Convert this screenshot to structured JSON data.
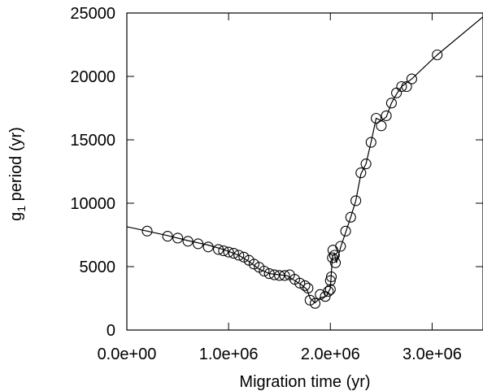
{
  "chart_data": {
    "type": "scatter",
    "title": "",
    "xlabel": "Migration time (yr)",
    "ylabel": {
      "main": "g",
      "sub": "1",
      "rest": " period (yr)"
    },
    "xlim": [
      0,
      3500000
    ],
    "ylim": [
      0,
      25000
    ],
    "x_ticks": [
      {
        "value": 0,
        "label": "0.0e+00"
      },
      {
        "value": 1000000,
        "label": "1.0e+06"
      },
      {
        "value": 2000000,
        "label": "2.0e+06"
      },
      {
        "value": 3000000,
        "label": "3.0e+06"
      }
    ],
    "y_ticks": [
      {
        "value": 0,
        "label": "0"
      },
      {
        "value": 5000,
        "label": "5000"
      },
      {
        "value": 10000,
        "label": "10000"
      },
      {
        "value": 15000,
        "label": "15000"
      },
      {
        "value": 20000,
        "label": "20000"
      },
      {
        "value": 25000,
        "label": "25000"
      }
    ],
    "grid": false,
    "legend": "none",
    "series": [
      {
        "style": "line",
        "color": "#000000",
        "points": [
          [
            0,
            8150
          ],
          [
            200000,
            7800
          ],
          [
            400000,
            7450
          ],
          [
            600000,
            7050
          ],
          [
            800000,
            6700
          ],
          [
            950000,
            6350
          ],
          [
            1100000,
            5900
          ],
          [
            1200000,
            5400
          ],
          [
            1300000,
            4800
          ],
          [
            1400000,
            4450
          ],
          [
            1500000,
            4350
          ],
          [
            1570000,
            4300
          ],
          [
            1650000,
            3900
          ],
          [
            1720000,
            3550
          ],
          [
            1770000,
            3200
          ],
          [
            1800000,
            2500
          ],
          [
            1850000,
            2150
          ],
          [
            1900000,
            2550
          ],
          [
            1960000,
            2650
          ],
          [
            2000000,
            3300
          ],
          [
            2020000,
            5800
          ],
          [
            2040000,
            6000
          ],
          [
            2060000,
            5300
          ],
          [
            2100000,
            6500
          ],
          [
            2150000,
            7700
          ],
          [
            2200000,
            8900
          ],
          [
            2250000,
            10200
          ],
          [
            2300000,
            12300
          ],
          [
            2350000,
            13100
          ],
          [
            2400000,
            14800
          ],
          [
            2450000,
            16700
          ],
          [
            2500000,
            16500
          ],
          [
            2550000,
            16800
          ],
          [
            2600000,
            17900
          ],
          [
            2650000,
            18600
          ],
          [
            2700000,
            19200
          ],
          [
            2800000,
            19800
          ],
          [
            3050000,
            21700
          ],
          [
            3500000,
            24700
          ]
        ]
      },
      {
        "style": "markers",
        "marker": "open-circle",
        "color": "#000000",
        "points": [
          [
            200000,
            7800
          ],
          [
            400000,
            7400
          ],
          [
            500000,
            7250
          ],
          [
            600000,
            7000
          ],
          [
            700000,
            6800
          ],
          [
            800000,
            6550
          ],
          [
            900000,
            6350
          ],
          [
            950000,
            6250
          ],
          [
            1000000,
            6150
          ],
          [
            1050000,
            6050
          ],
          [
            1100000,
            5900
          ],
          [
            1150000,
            5750
          ],
          [
            1200000,
            5500
          ],
          [
            1250000,
            5200
          ],
          [
            1300000,
            4950
          ],
          [
            1350000,
            4650
          ],
          [
            1400000,
            4450
          ],
          [
            1450000,
            4350
          ],
          [
            1500000,
            4300
          ],
          [
            1550000,
            4300
          ],
          [
            1600000,
            4350
          ],
          [
            1650000,
            4000
          ],
          [
            1700000,
            3700
          ],
          [
            1750000,
            3500
          ],
          [
            1780000,
            3300
          ],
          [
            1800000,
            2350
          ],
          [
            1850000,
            2100
          ],
          [
            1900000,
            2800
          ],
          [
            1950000,
            2650
          ],
          [
            1980000,
            3050
          ],
          [
            2000000,
            3200
          ],
          [
            2000000,
            3900
          ],
          [
            2010000,
            4200
          ],
          [
            2020000,
            5700
          ],
          [
            2025000,
            6300
          ],
          [
            2040000,
            5900
          ],
          [
            2050000,
            5300
          ],
          [
            2100000,
            6600
          ],
          [
            2150000,
            7800
          ],
          [
            2200000,
            8900
          ],
          [
            2250000,
            10200
          ],
          [
            2300000,
            12400
          ],
          [
            2350000,
            13100
          ],
          [
            2400000,
            14800
          ],
          [
            2450000,
            16700
          ],
          [
            2500000,
            16100
          ],
          [
            2550000,
            16900
          ],
          [
            2600000,
            17900
          ],
          [
            2650000,
            18700
          ],
          [
            2700000,
            19200
          ],
          [
            2750000,
            19200
          ],
          [
            2800000,
            19800
          ],
          [
            3050000,
            21700
          ]
        ]
      }
    ]
  }
}
